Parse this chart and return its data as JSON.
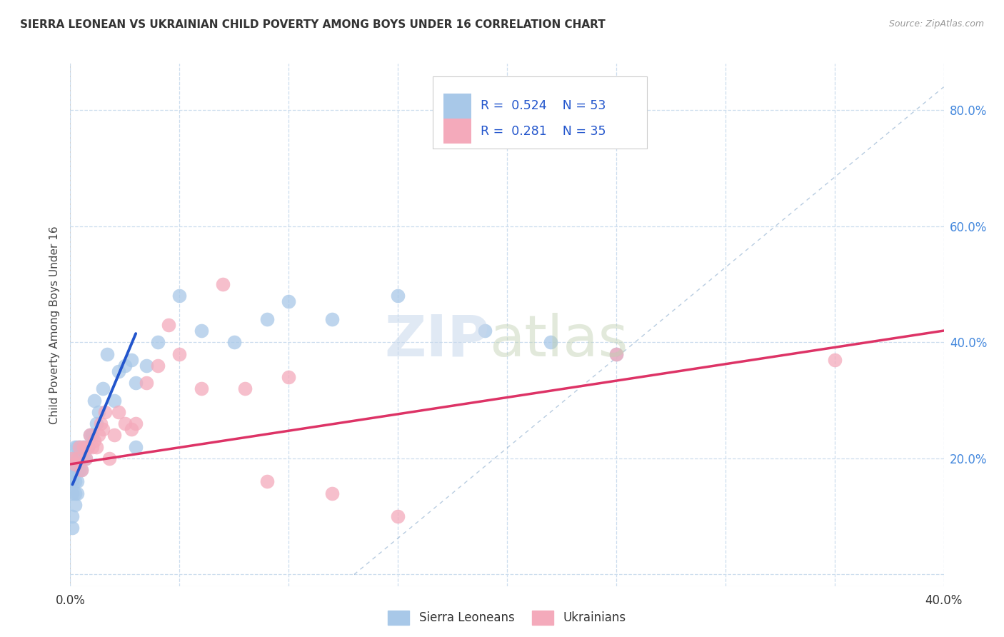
{
  "title": "SIERRA LEONEAN VS UKRAINIAN CHILD POVERTY AMONG BOYS UNDER 16 CORRELATION CHART",
  "source": "Source: ZipAtlas.com",
  "ylabel": "Child Poverty Among Boys Under 16",
  "xlim": [
    0.0,
    0.4
  ],
  "ylim": [
    -0.02,
    0.88
  ],
  "sl_color": "#a8c8e8",
  "uk_color": "#f4aabb",
  "sl_line_color": "#2255cc",
  "uk_line_color": "#dd3366",
  "ref_line_color": "#88aacc",
  "grid_color": "#ccddee",
  "legend_r_sl": "R = 0.524",
  "legend_n_sl": "N = 53",
  "legend_r_uk": "R = 0.281",
  "legend_n_uk": "N = 35",
  "legend_label_sl": "Sierra Leoneans",
  "legend_label_uk": "Ukrainians",
  "sl_x": [
    0.001,
    0.001,
    0.001,
    0.001,
    0.001,
    0.001,
    0.002,
    0.002,
    0.002,
    0.002,
    0.002,
    0.002,
    0.003,
    0.003,
    0.003,
    0.003,
    0.003,
    0.004,
    0.004,
    0.004,
    0.005,
    0.005,
    0.005,
    0.006,
    0.006,
    0.007,
    0.007,
    0.008,
    0.009,
    0.01,
    0.011,
    0.012,
    0.013,
    0.015,
    0.017,
    0.02,
    0.022,
    0.025,
    0.028,
    0.03,
    0.035,
    0.04,
    0.05,
    0.06,
    0.075,
    0.09,
    0.1,
    0.12,
    0.15,
    0.19,
    0.22,
    0.25,
    0.03
  ],
  "sl_y": [
    0.2,
    0.18,
    0.16,
    0.14,
    0.1,
    0.08,
    0.22,
    0.2,
    0.18,
    0.16,
    0.14,
    0.12,
    0.22,
    0.2,
    0.18,
    0.16,
    0.14,
    0.22,
    0.2,
    0.18,
    0.22,
    0.2,
    0.18,
    0.22,
    0.2,
    0.22,
    0.2,
    0.22,
    0.24,
    0.24,
    0.3,
    0.26,
    0.28,
    0.32,
    0.38,
    0.3,
    0.35,
    0.36,
    0.37,
    0.33,
    0.36,
    0.4,
    0.48,
    0.42,
    0.4,
    0.44,
    0.47,
    0.44,
    0.48,
    0.42,
    0.4,
    0.38,
    0.22
  ],
  "uk_x": [
    0.001,
    0.002,
    0.003,
    0.004,
    0.005,
    0.006,
    0.007,
    0.008,
    0.009,
    0.01,
    0.011,
    0.012,
    0.013,
    0.014,
    0.015,
    0.016,
    0.018,
    0.02,
    0.022,
    0.025,
    0.028,
    0.03,
    0.035,
    0.04,
    0.045,
    0.05,
    0.06,
    0.07,
    0.08,
    0.09,
    0.1,
    0.12,
    0.15,
    0.25,
    0.35
  ],
  "uk_y": [
    0.2,
    0.19,
    0.2,
    0.22,
    0.18,
    0.22,
    0.2,
    0.22,
    0.24,
    0.22,
    0.23,
    0.22,
    0.24,
    0.26,
    0.25,
    0.28,
    0.2,
    0.24,
    0.28,
    0.26,
    0.25,
    0.26,
    0.33,
    0.36,
    0.43,
    0.38,
    0.32,
    0.5,
    0.32,
    0.16,
    0.34,
    0.14,
    0.1,
    0.38,
    0.37
  ],
  "sl_trend_x": [
    0.001,
    0.03
  ],
  "sl_trend_y": [
    0.155,
    0.415
  ],
  "uk_trend_x": [
    0.0,
    0.4
  ],
  "uk_trend_y": [
    0.19,
    0.42
  ],
  "ref_line_x1": 0.18,
  "ref_line_y1": 0.0,
  "ref_line_x2": 0.4,
  "ref_line_y2": 0.86,
  "background_color": "#ffffff"
}
